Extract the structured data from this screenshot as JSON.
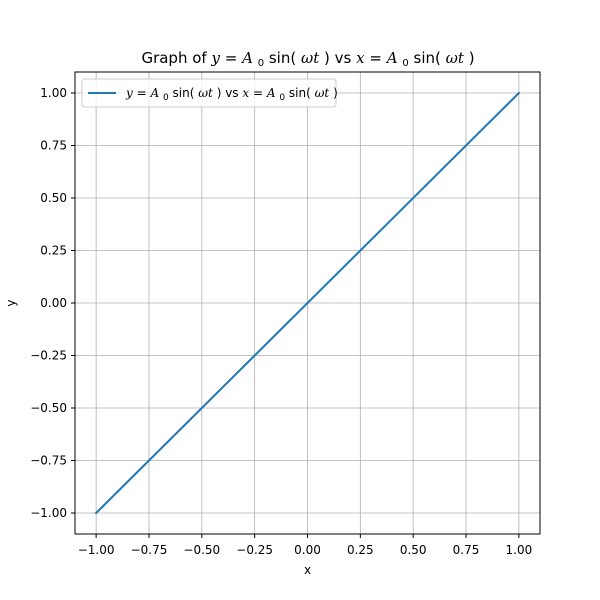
{
  "chart_data": {
    "type": "line",
    "title": {
      "prefix": "Graph of ",
      "y_var": "y",
      "eq1": " = ",
      "amp": "A",
      "amp_sub": "0",
      "fn": "sin(",
      "omega_t": "ωt",
      "close": ")",
      "vs": " vs ",
      "x_var": "x"
    },
    "xlabel": "x",
    "ylabel": "y",
    "xlim": [
      -1.1,
      1.1
    ],
    "ylim": [
      -1.1,
      1.1
    ],
    "xticks": [
      -1.0,
      -0.75,
      -0.5,
      -0.25,
      0.0,
      0.25,
      0.5,
      0.75,
      1.0
    ],
    "xtick_labels": [
      "−1.00",
      "−0.75",
      "−0.50",
      "−0.25",
      "0.00",
      "0.25",
      "0.50",
      "0.75",
      "1.00"
    ],
    "yticks": [
      -1.0,
      -0.75,
      -0.5,
      -0.25,
      0.0,
      0.25,
      0.5,
      0.75,
      1.0
    ],
    "ytick_labels": [
      "−1.00",
      "−0.75",
      "−0.50",
      "−0.25",
      "0.00",
      "0.25",
      "0.50",
      "0.75",
      "1.00"
    ],
    "grid": true,
    "legend_position": "top-left",
    "series": [
      {
        "name": "y = A0sin(ωt) vs x = A0sin(ωt)",
        "color": "#1f77b4",
        "x": [
          -1.0,
          1.0
        ],
        "y": [
          -1.0,
          1.0
        ]
      }
    ]
  }
}
